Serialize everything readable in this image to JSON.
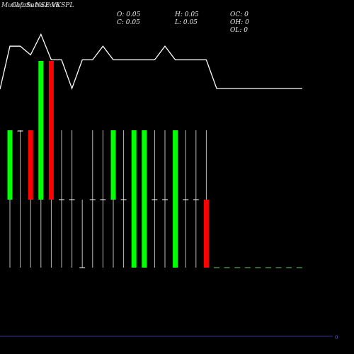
{
  "header": {
    "watermark": "MunafaSutra.com",
    "title": "Charts NSE VKSPL"
  },
  "ohlc_info": {
    "o": "O: 0.05",
    "h": "H: 0.05",
    "oc": "OC: 0",
    "c": "C: 0.05",
    "l": "L: 0.05",
    "oh": "OH: 0",
    "ol": "OL: 0"
  },
  "bottom_marker": "0",
  "colors": {
    "background": "#000000",
    "up": "#00ff00",
    "down": "#ff0000",
    "neutral": "#ffffff",
    "flat": "#ffffff",
    "baseline": "#333399"
  },
  "chart_data": {
    "type": "candlestick",
    "title": "Charts NSE VKSPL",
    "candles": [
      {
        "dir": "up"
      },
      {
        "dir": "flat"
      },
      {
        "dir": "down"
      },
      {
        "dir": "up"
      },
      {
        "dir": "down"
      },
      {
        "dir": "flat"
      },
      {
        "dir": "flat"
      },
      {
        "dir": "flat"
      },
      {
        "dir": "flat"
      },
      {
        "dir": "flat"
      },
      {
        "dir": "up"
      },
      {
        "dir": "flat"
      },
      {
        "dir": "up"
      },
      {
        "dir": "up"
      },
      {
        "dir": "flat"
      },
      {
        "dir": "flat"
      },
      {
        "dir": "up"
      },
      {
        "dir": "flat"
      },
      {
        "dir": "flat"
      },
      {
        "dir": "down"
      },
      {
        "dir": "flat"
      },
      {
        "dir": "flat"
      },
      {
        "dir": "flat"
      },
      {
        "dir": "flat"
      },
      {
        "dir": "flat"
      },
      {
        "dir": "flat"
      },
      {
        "dir": "flat"
      },
      {
        "dir": "flat"
      },
      {
        "dir": "flat"
      }
    ],
    "upper_line": [
      0.68,
      0.68,
      0.54,
      0.87,
      0.46,
      0.46,
      0.0,
      0.46,
      0.46,
      0.68,
      0.46,
      0.46,
      0.46,
      0.46,
      0.46,
      0.68,
      0.46,
      0.46,
      0.46,
      0.46,
      0.0,
      0.0,
      0.0,
      0.0,
      0.0,
      0.0,
      0.0,
      0.0,
      0.0
    ],
    "volume_baseline": 0
  }
}
